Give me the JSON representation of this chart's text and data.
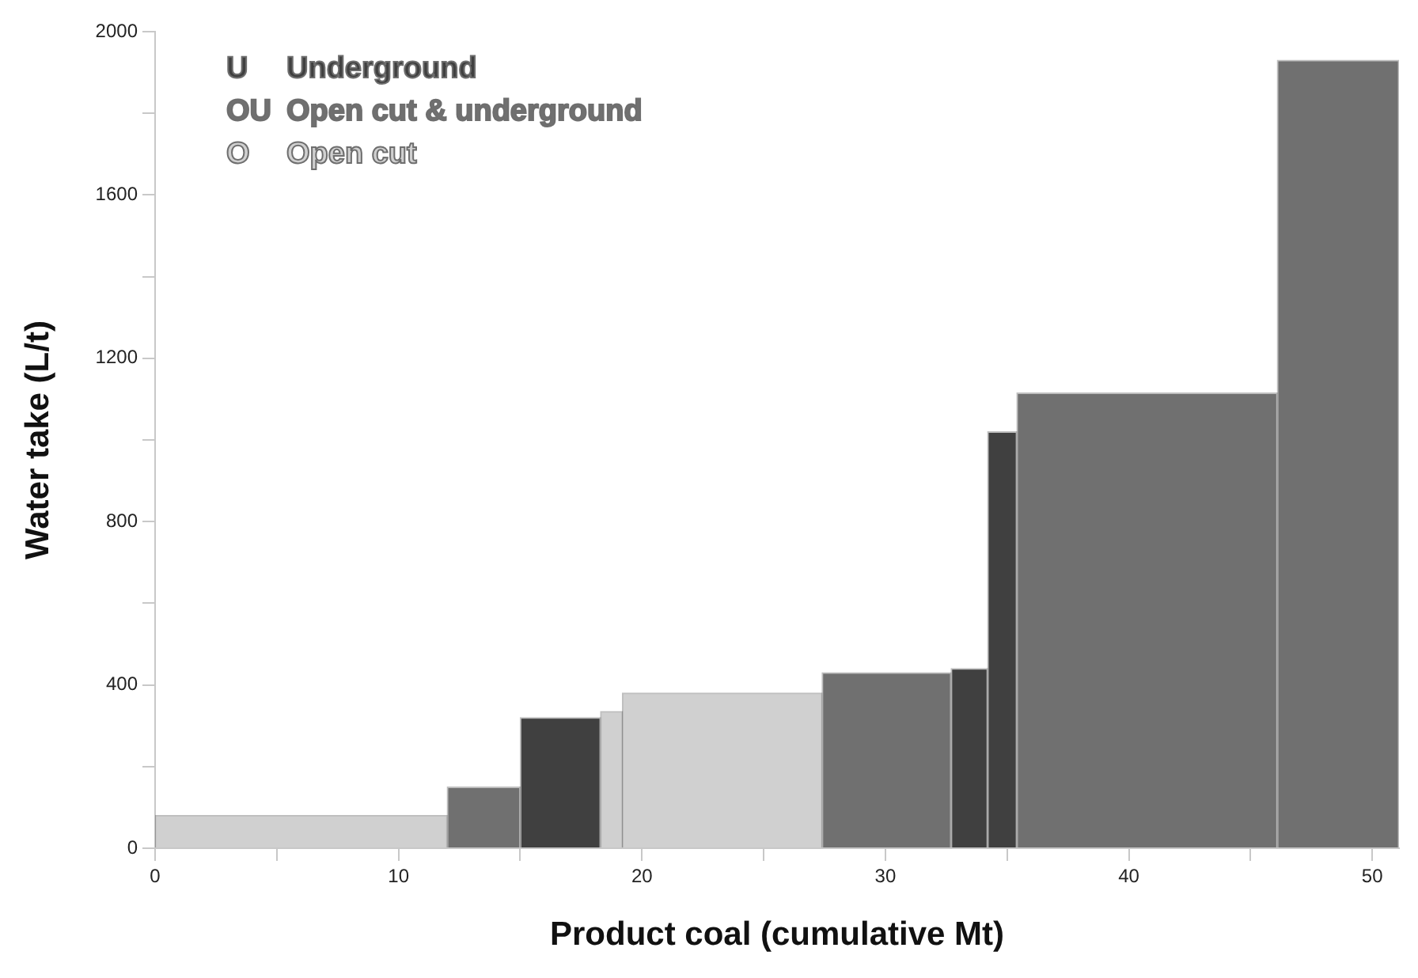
{
  "chart_data": {
    "type": "histogram",
    "xlabel": "Product coal (cumulative Mt)",
    "ylabel": "Water take (L/t)",
    "bins": [
      0,
      12,
      15,
      18.3,
      19.2,
      27.4,
      32.7,
      34.2,
      35.4,
      46.1,
      51.1
    ],
    "series": [
      {
        "name": "U Underground",
        "color": "#404040",
        "values": [
          null,
          null,
          320,
          null,
          null,
          null,
          440,
          1020,
          null,
          null
        ]
      },
      {
        "name": "OU Open cut & underground",
        "color": "#707070",
        "values": [
          null,
          150,
          null,
          null,
          null,
          430,
          null,
          null,
          1115,
          1930
        ]
      },
      {
        "name": "O Open cut",
        "color": "#d0d0d0",
        "values": [
          80,
          null,
          null,
          335,
          380,
          null,
          null,
          null,
          null,
          null
        ]
      }
    ],
    "xlim": [
      0,
      51.1
    ],
    "xticks": [
      0,
      {
        "value": 5,
        "label": null
      },
      10,
      {
        "value": 15,
        "label": null
      },
      20,
      {
        "value": 25,
        "label": null
      },
      30,
      {
        "value": 35,
        "label": null
      },
      40,
      {
        "value": 45,
        "label": null
      },
      50
    ],
    "ylim": [
      0,
      2000
    ],
    "yticks": [
      0,
      {
        "value": 200,
        "label": null
      },
      400,
      {
        "value": 600,
        "label": null
      },
      800,
      {
        "value": 1000,
        "label": null
      },
      1200,
      {
        "value": 1400,
        "label": null
      },
      1600,
      {
        "value": 1800,
        "label": null
      },
      2000
    ],
    "legend": "top left",
    "grid": false
  }
}
